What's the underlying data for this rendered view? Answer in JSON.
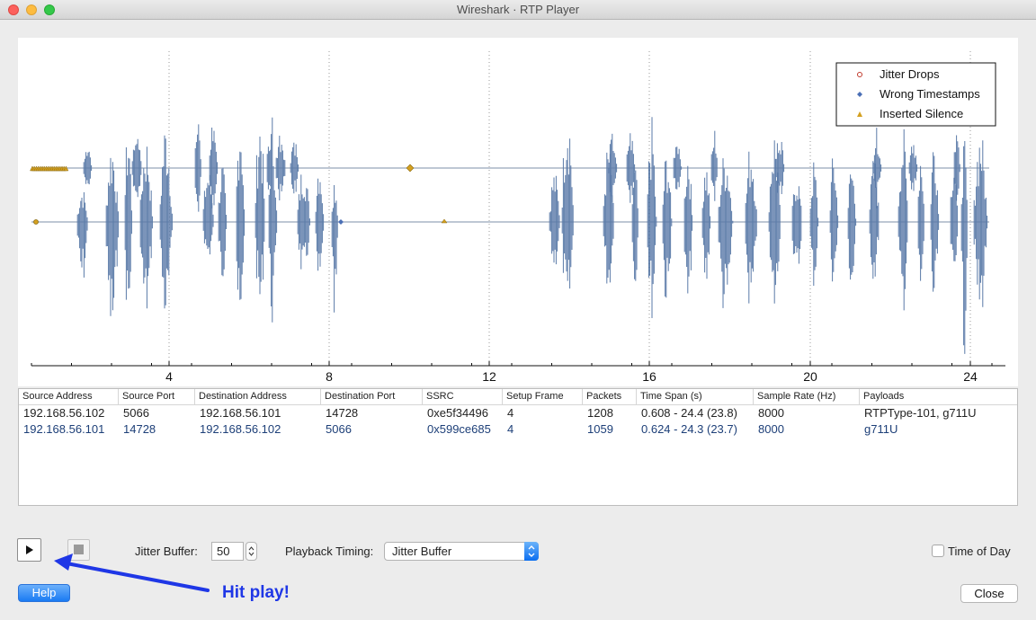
{
  "window": {
    "title": "Wireshark · RTP Player"
  },
  "plot": {
    "x_ticks": [
      "4",
      "8",
      "12",
      "16",
      "20",
      "24"
    ],
    "legend": [
      "Jitter Drops",
      "Wrong Timestamps",
      "Inserted Silence"
    ],
    "colors": {
      "waveform": "#5a7aa8",
      "jitter_drops": "#c0392b",
      "wrong_timestamps": "#4a6fb5",
      "inserted_silence": "#d4a020"
    }
  },
  "table": {
    "headers": [
      "Source Address",
      "Source Port",
      "Destination Address",
      "Destination Port",
      "SSRC",
      "Setup Frame",
      "Packets",
      "Time Span (s)",
      "Sample Rate (Hz)",
      "Payloads"
    ],
    "rows": [
      [
        "192.168.56.102",
        "5066",
        "192.168.56.101",
        "14728",
        "0xe5f34496",
        "4",
        "1208",
        "0.608 - 24.4 (23.8)",
        "8000",
        "RTPType-101, g711U"
      ],
      [
        "192.168.56.101",
        "14728",
        "192.168.56.102",
        "5066",
        "0x599ce685",
        "4",
        "1059",
        "0.624 - 24.3 (23.7)",
        "8000",
        "g711U"
      ]
    ]
  },
  "controls": {
    "play_icon": "play-icon",
    "stop_icon": "stop-icon",
    "jitter_label": "Jitter Buffer:",
    "jitter_value": "50",
    "timing_label": "Playback Timing:",
    "timing_value": "Jitter Buffer",
    "time_of_day_label": "Time of Day",
    "help_label": "Help",
    "close_label": "Close"
  },
  "annotation": {
    "text": "Hit play!",
    "color": "#1f37e6"
  }
}
